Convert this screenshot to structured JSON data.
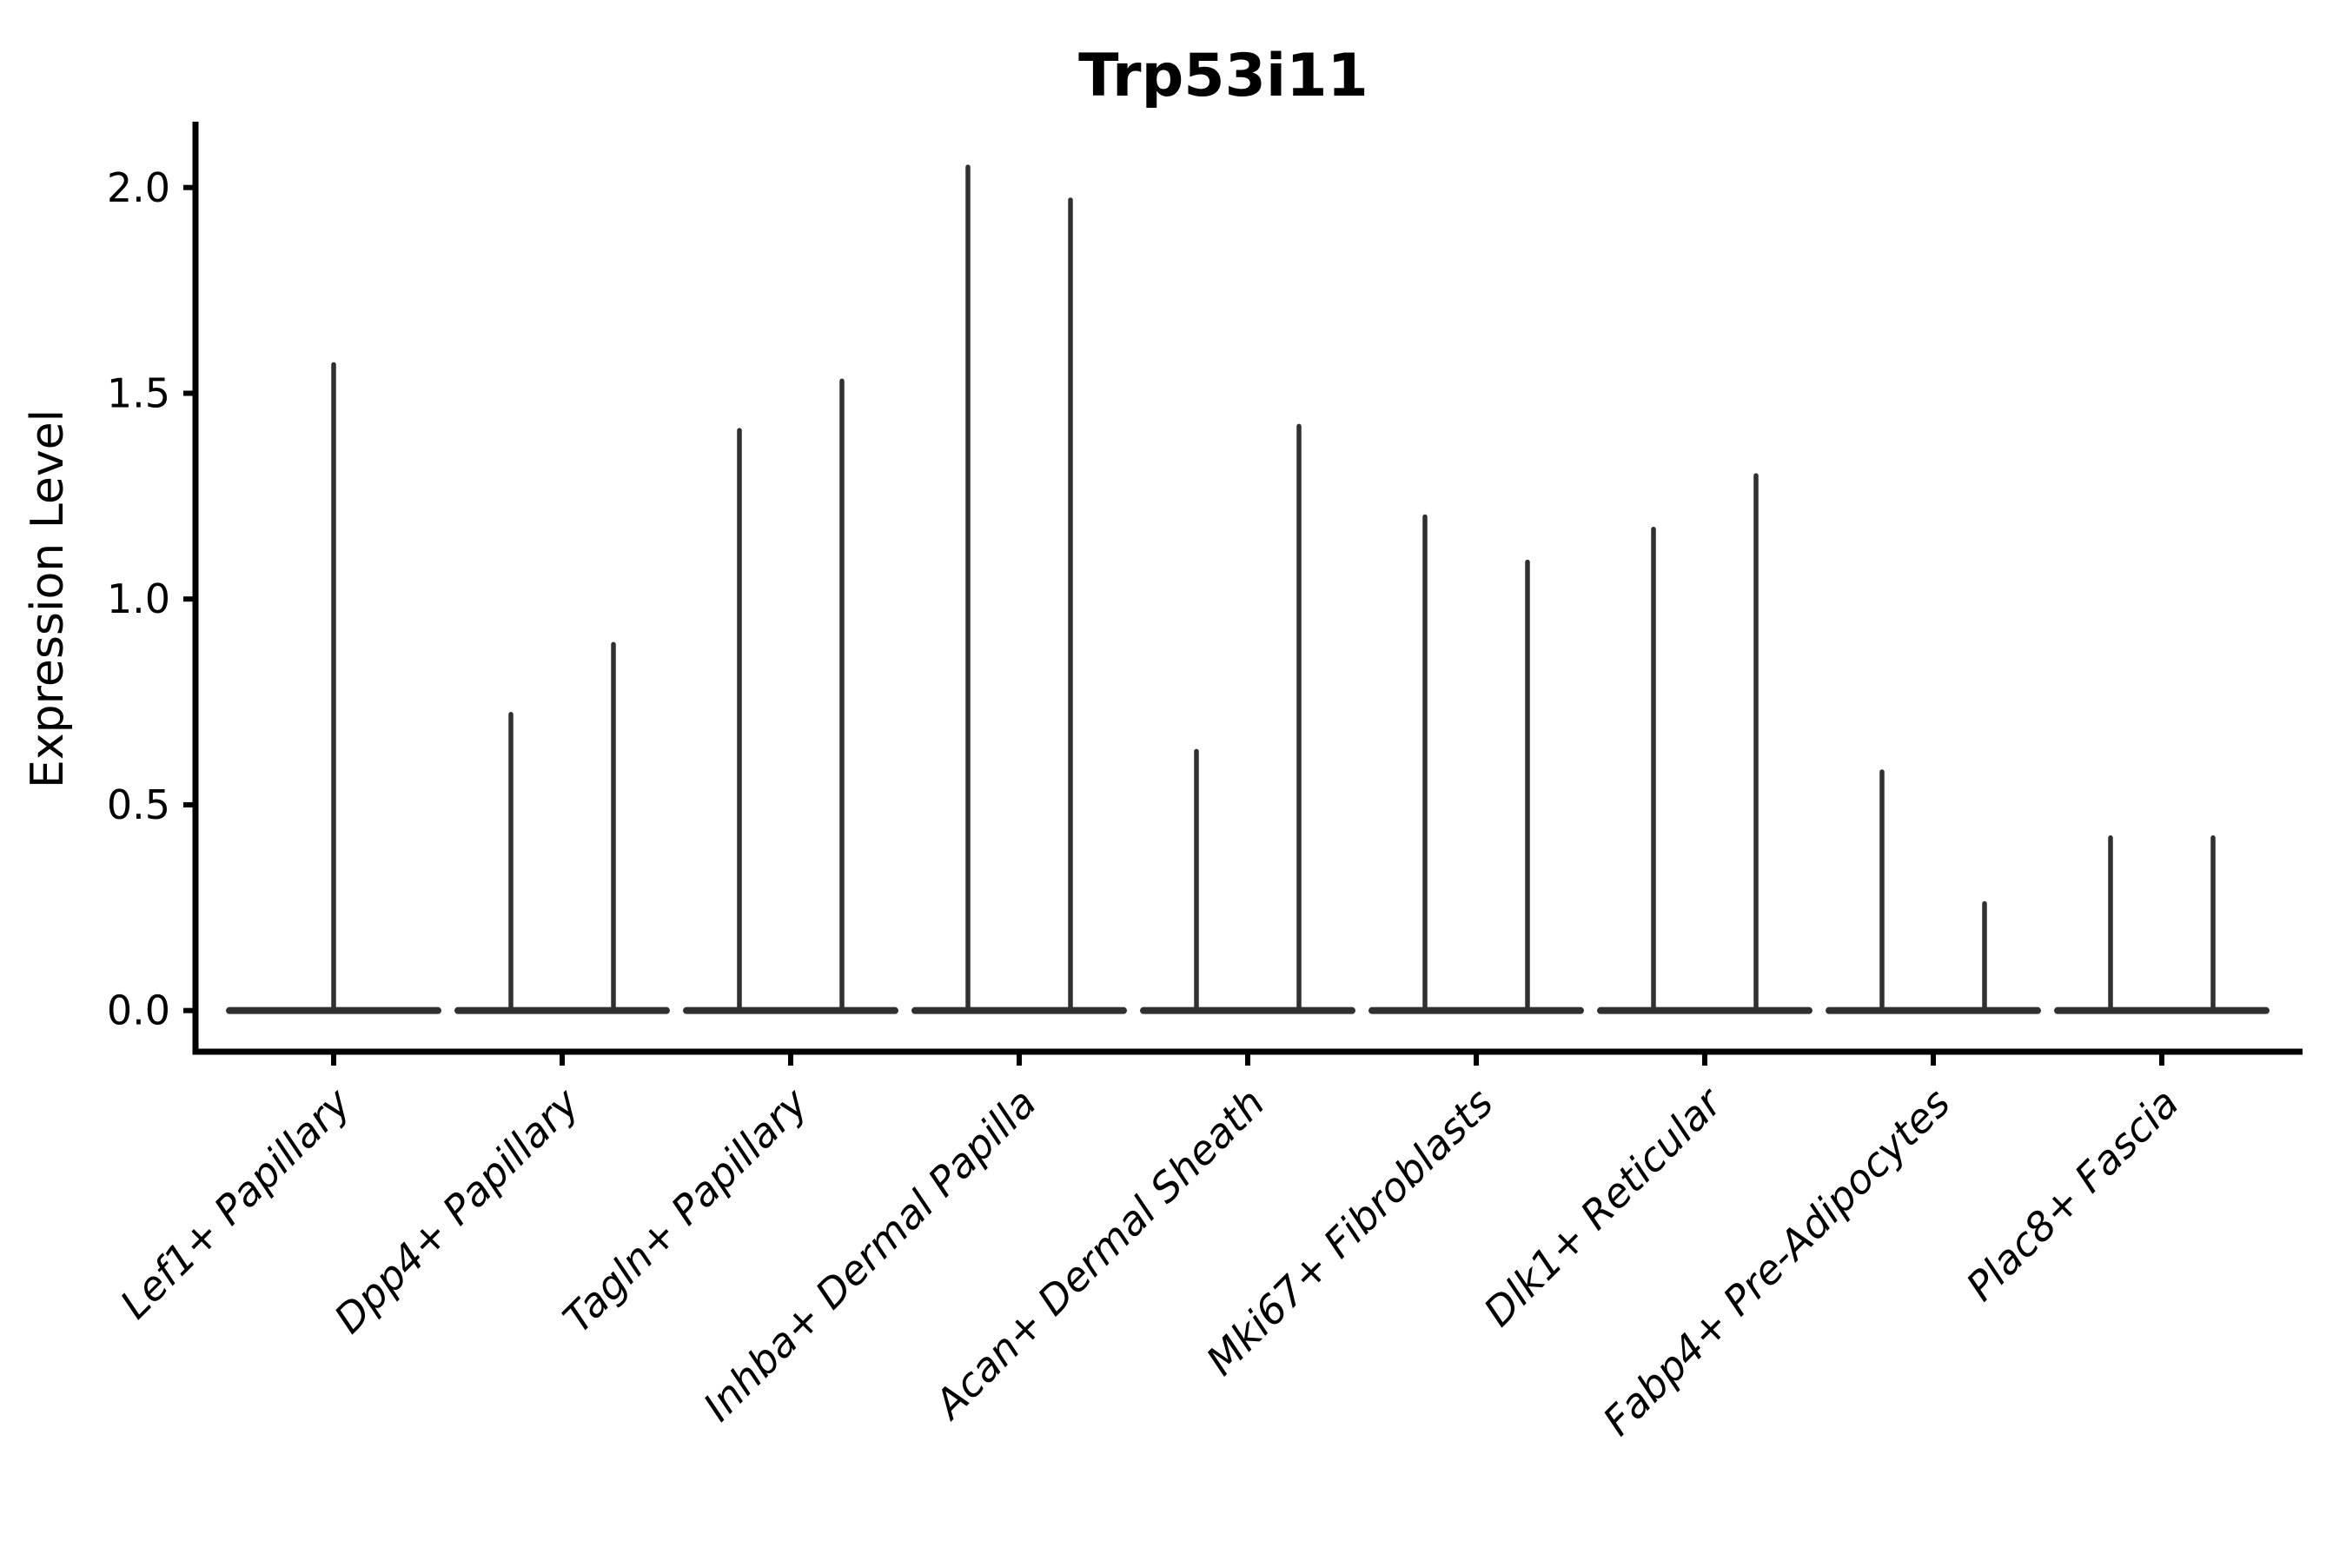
{
  "chart_data": {
    "type": "violin",
    "title": "Trp53i11",
    "xlabel": "",
    "ylabel": "Expression Level",
    "ylim": [
      -0.1,
      2.16
    ],
    "yticks": [
      {
        "value": 0.0,
        "label": "0.0"
      },
      {
        "value": 0.5,
        "label": "0.5"
      },
      {
        "value": 1.0,
        "label": "1.0"
      },
      {
        "value": 1.5,
        "label": "1.5"
      },
      {
        "value": 2.0,
        "label": "2.0"
      }
    ],
    "grid": false,
    "legend": null,
    "categories": [
      "Lef1+ Papillary",
      "Dpp4+ Papillary",
      "Tagln+ Papillary",
      "Inhba+ Dermal Papilla",
      "Acan+ Dermal Sheath",
      "Mki67+ Fibroblasts",
      "Dlk1+ Reticular",
      "Fabp4+ Pre-Adipocytes",
      "Plac8+ Fascia"
    ],
    "violins": [
      {
        "category": "Lef1+ Papillary",
        "spike_offsets": [
          0
        ],
        "spike_values": [
          1.57
        ]
      },
      {
        "category": "Dpp4+ Papillary",
        "spike_offsets": [
          -1,
          1
        ],
        "spike_values": [
          0.72,
          0.89
        ]
      },
      {
        "category": "Tagln+ Papillary",
        "spike_offsets": [
          -1,
          1
        ],
        "spike_values": [
          1.41,
          1.53
        ]
      },
      {
        "category": "Inhba+ Dermal Papilla",
        "spike_offsets": [
          -1,
          1
        ],
        "spike_values": [
          2.05,
          1.97
        ]
      },
      {
        "category": "Acan+ Dermal Sheath",
        "spike_offsets": [
          -1,
          1
        ],
        "spike_values": [
          0.63,
          1.42
        ]
      },
      {
        "category": "Mki67+ Fibroblasts",
        "spike_offsets": [
          -1,
          1
        ],
        "spike_values": [
          1.2,
          1.09
        ]
      },
      {
        "category": "Dlk1+ Reticular",
        "spike_offsets": [
          -1,
          1
        ],
        "spike_values": [
          1.17,
          1.3
        ]
      },
      {
        "category": "Fabp4+ Pre-Adipocytes",
        "spike_offsets": [
          -1,
          1
        ],
        "spike_values": [
          0.58,
          0.26
        ]
      },
      {
        "category": "Plac8+ Fascia",
        "spike_offsets": [
          -1,
          1
        ],
        "spike_values": [
          0.42,
          0.42
        ]
      }
    ],
    "colors": {
      "violin_line": "#303030",
      "axis": "#000000",
      "background": "#ffffff"
    }
  }
}
